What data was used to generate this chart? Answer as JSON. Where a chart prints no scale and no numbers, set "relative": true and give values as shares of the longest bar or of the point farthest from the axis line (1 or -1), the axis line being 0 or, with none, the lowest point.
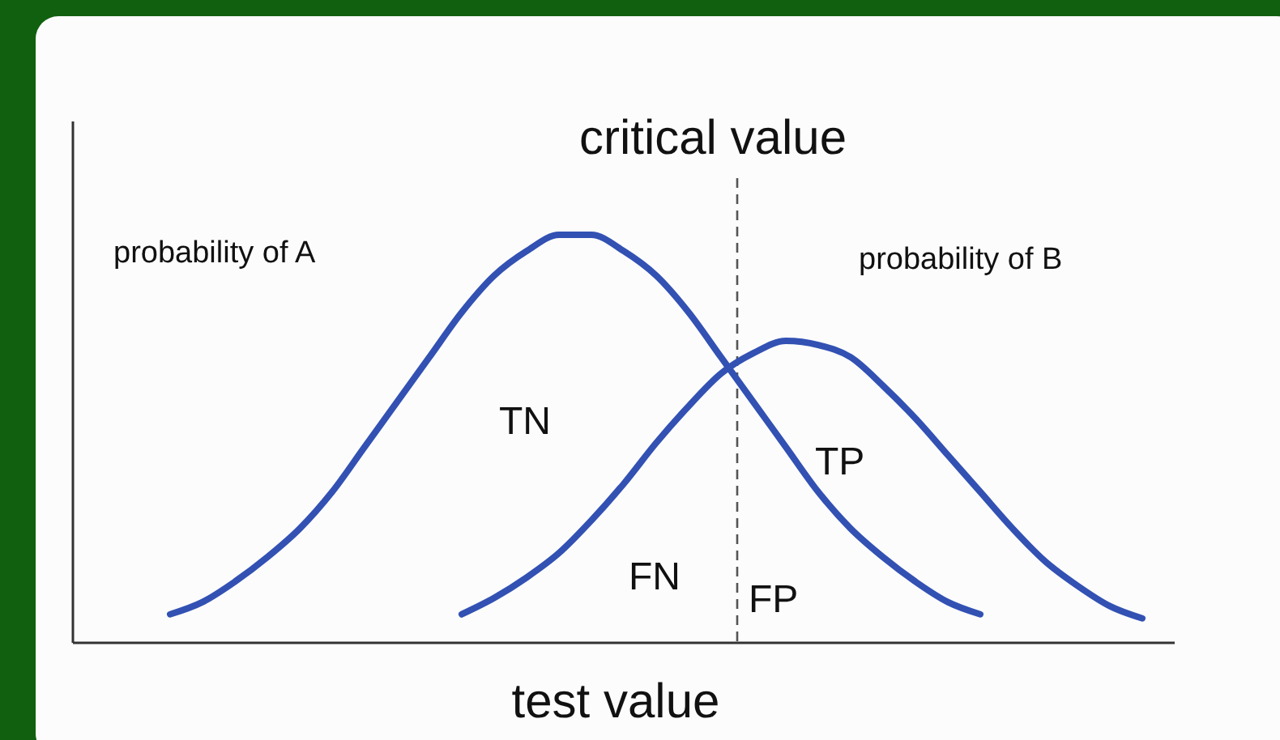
{
  "chart_data": {
    "type": "line",
    "relative": true,
    "title": "critical value",
    "xlabel": "test value",
    "categories": [
      null,
      null,
      null,
      null,
      null,
      null,
      null,
      null,
      null,
      null,
      null,
      null,
      null,
      null,
      null,
      null,
      null,
      null,
      null,
      null,
      null,
      null,
      null,
      null,
      null,
      null,
      null,
      null,
      null,
      null,
      null,
      null,
      null,
      null,
      null
    ],
    "series": [
      {
        "color": "#3251b3",
        "values": [
          null,
          null,
          null,
          0.07,
          0.1,
          0.15,
          0.21,
          0.28,
          0.37,
          0.48,
          0.59,
          0.7,
          0.81,
          0.9,
          0.96,
          1,
          1,
          0.96,
          0.9,
          0.81,
          0.7,
          0.59,
          0.48,
          0.37,
          0.28,
          0.21,
          0.15,
          0.1,
          0.07,
          null,
          null,
          null,
          null,
          null,
          null
        ]
      },
      {
        "color": "#3251b3",
        "values": [
          null,
          null,
          null,
          null,
          null,
          null,
          null,
          null,
          null,
          null,
          null,
          null,
          0.07,
          0.11,
          0.16,
          0.22,
          0.3,
          0.39,
          0.49,
          0.58,
          0.66,
          0.71,
          0.74,
          0.73,
          0.7,
          0.63,
          0.55,
          0.46,
          0.37,
          0.28,
          0.2,
          0.14,
          0.09,
          0.06,
          null
        ]
      }
    ],
    "annotations": [
      "probability of A",
      "probability of B",
      "TN",
      "TP",
      "FN",
      "FP"
    ],
    "marker": "none",
    "line_style": "solid"
  }
}
